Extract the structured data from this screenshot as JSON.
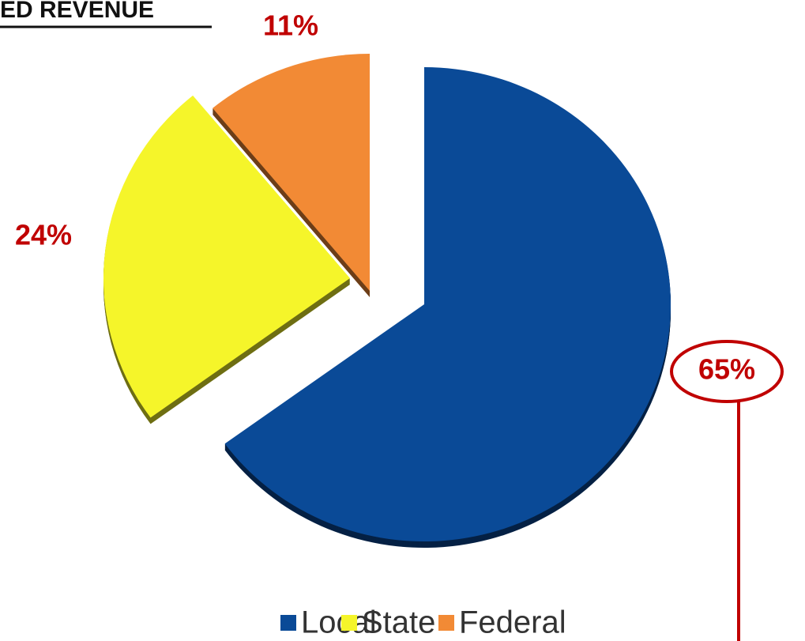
{
  "chart_data": {
    "type": "pie",
    "title": "ED REVENUE",
    "categories": [
      "Local",
      "State",
      "Federal"
    ],
    "values": [
      65,
      24,
      11
    ],
    "value_labels": [
      "65%",
      "24%",
      "11%"
    ],
    "colors": [
      "#0a4a97",
      "#f5f52a",
      "#f28a35"
    ],
    "legend": "bottom"
  }
}
